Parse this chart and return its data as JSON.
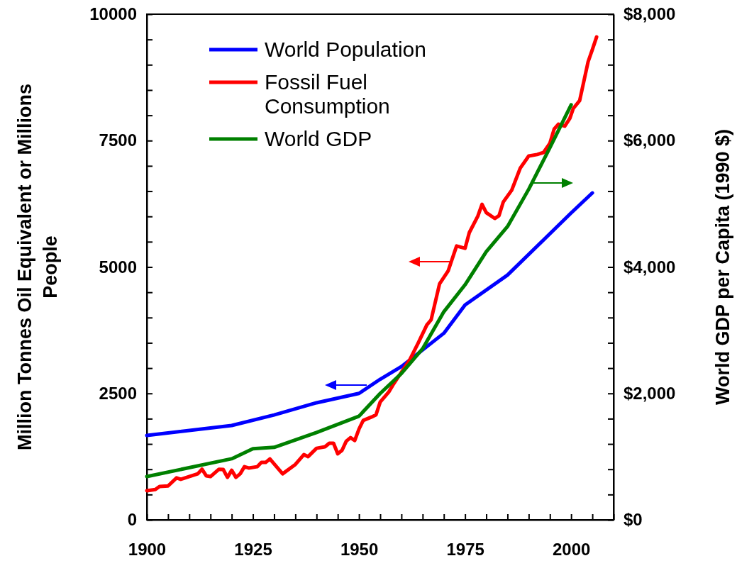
{
  "chart_data": {
    "type": "line",
    "ylabel": "Million Tonnes Oil Equivalent or Millions People",
    "y2label": "World GDP per Capita (1990 $)",
    "xlim": [
      1900,
      2010
    ],
    "xticks": [
      1900,
      {
        "value": 1905,
        "label": null
      },
      {
        "value": 1910,
        "label": null
      },
      {
        "value": 1915,
        "label": null
      },
      {
        "value": 1920,
        "label": null
      },
      1925,
      {
        "value": 1930,
        "label": null
      },
      {
        "value": 1935,
        "label": null
      },
      {
        "value": 1940,
        "label": null
      },
      {
        "value": 1945,
        "label": null
      },
      1950,
      {
        "value": 1955,
        "label": null
      },
      {
        "value": 1960,
        "label": null
      },
      {
        "value": 1965,
        "label": null
      },
      {
        "value": 1970,
        "label": null
      },
      1975,
      {
        "value": 1980,
        "label": null
      },
      {
        "value": 1985,
        "label": null
      },
      {
        "value": 1990,
        "label": null
      },
      {
        "value": 1995,
        "label": null
      },
      2000,
      {
        "value": 2005,
        "label": null
      },
      {
        "value": 2010,
        "label": null
      }
    ],
    "ylim": [
      0,
      10000
    ],
    "yticks": [
      0,
      {
        "value": 500,
        "label": null
      },
      {
        "value": 1000,
        "label": null
      },
      {
        "value": 1500,
        "label": null
      },
      {
        "value": 2000,
        "label": null
      },
      2500,
      {
        "value": 3000,
        "label": null
      },
      {
        "value": 3500,
        "label": null
      },
      {
        "value": 4000,
        "label": null
      },
      {
        "value": 4500,
        "label": null
      },
      5000,
      {
        "value": 5500,
        "label": null
      },
      {
        "value": 6000,
        "label": null
      },
      {
        "value": 6500,
        "label": null
      },
      {
        "value": 7000,
        "label": null
      },
      7500,
      {
        "value": 8000,
        "label": null
      },
      {
        "value": 8500,
        "label": null
      },
      {
        "value": 9000,
        "label": null
      },
      {
        "value": 9500,
        "label": null
      },
      10000
    ],
    "y2lim": [
      0,
      8000
    ],
    "y2ticks": [
      {
        "value": 0,
        "label": "$0"
      },
      {
        "value": 400,
        "label": null
      },
      {
        "value": 800,
        "label": null
      },
      {
        "value": 1200,
        "label": null
      },
      {
        "value": 1600,
        "label": null
      },
      {
        "value": 2000,
        "label": "$2,000"
      },
      {
        "value": 2400,
        "label": null
      },
      {
        "value": 2800,
        "label": null
      },
      {
        "value": 3200,
        "label": null
      },
      {
        "value": 3600,
        "label": null
      },
      {
        "value": 4000,
        "label": "$4,000"
      },
      {
        "value": 4400,
        "label": null
      },
      {
        "value": 4800,
        "label": null
      },
      {
        "value": 5200,
        "label": null
      },
      {
        "value": 5600,
        "label": null
      },
      {
        "value": 6000,
        "label": "$6,000"
      },
      {
        "value": 6400,
        "label": null
      },
      {
        "value": 6800,
        "label": null
      },
      {
        "value": 7200,
        "label": null
      },
      {
        "value": 7600,
        "label": null
      },
      {
        "value": 8000,
        "label": "$8,000"
      }
    ],
    "legend": "top left",
    "grid": false,
    "marker": "none",
    "line_style": "solid",
    "series": [
      {
        "name": "World Population",
        "color": "#0000ff",
        "x": [
          1900,
          1920,
          1930,
          1940,
          1950,
          1955,
          1960,
          1970,
          1975,
          1985,
          2000,
          2005
        ],
        "values": [
          1670,
          1865,
          2075,
          2315,
          2500,
          2780,
          3030,
          3690,
          4250,
          4840,
          6070,
          6465
        ]
      },
      {
        "name": "Fossil Fuel Consumption",
        "color": "#ff0000",
        "x": [
          1900,
          1902,
          1903,
          1905,
          1907,
          1908,
          1912,
          1913,
          1914,
          1915,
          1917,
          1918,
          1919,
          1920,
          1921,
          1922,
          1923,
          1924,
          1926,
          1927,
          1928,
          1929,
          1932,
          1935,
          1937,
          1938,
          1940,
          1942,
          1943,
          1944,
          1945,
          1946,
          1947,
          1948,
          1949,
          1950,
          1951,
          1953,
          1954,
          1955,
          1957,
          1958,
          1962,
          1964,
          1966,
          1967,
          1969,
          1971,
          1973,
          1975,
          1976,
          1978,
          1979,
          1980,
          1982,
          1983,
          1984,
          1986,
          1988,
          1990,
          1992,
          1993.5,
          1995,
          1996,
          1997,
          1998.5,
          1999.7,
          2000.5,
          2002,
          2004,
          2005,
          2006
        ],
        "values": [
          575,
          600,
          660,
          670,
          830,
          800,
          910,
          1000,
          870,
          855,
          1000,
          995,
          840,
          980,
          840,
          910,
          1050,
          1025,
          1050,
          1135,
          1135,
          1205,
          910,
          1095,
          1290,
          1250,
          1415,
          1445,
          1515,
          1515,
          1305,
          1375,
          1555,
          1625,
          1570,
          1795,
          1965,
          2035,
          2075,
          2330,
          2525,
          2665,
          3170,
          3505,
          3855,
          3955,
          4670,
          4920,
          5415,
          5370,
          5680,
          6005,
          6240,
          6075,
          5960,
          6015,
          6285,
          6520,
          6955,
          7195,
          7225,
          7265,
          7450,
          7730,
          7825,
          7785,
          7940,
          8135,
          8290,
          9060,
          9300,
          9550
        ]
      },
      {
        "name": "World GDP",
        "color": "#008000",
        "axis": "y2",
        "x": [
          1900,
          1920,
          1925,
          1930,
          1940,
          1950,
          1955,
          1960,
          1965,
          1970,
          1975,
          1980,
          1985,
          1990,
          1995,
          2000
        ],
        "values": [
          685,
          966,
          1124,
          1146,
          1382,
          1640,
          2000,
          2315,
          2708,
          3292,
          3719,
          4243,
          4640,
          5230,
          5890,
          6566
        ]
      }
    ]
  }
}
